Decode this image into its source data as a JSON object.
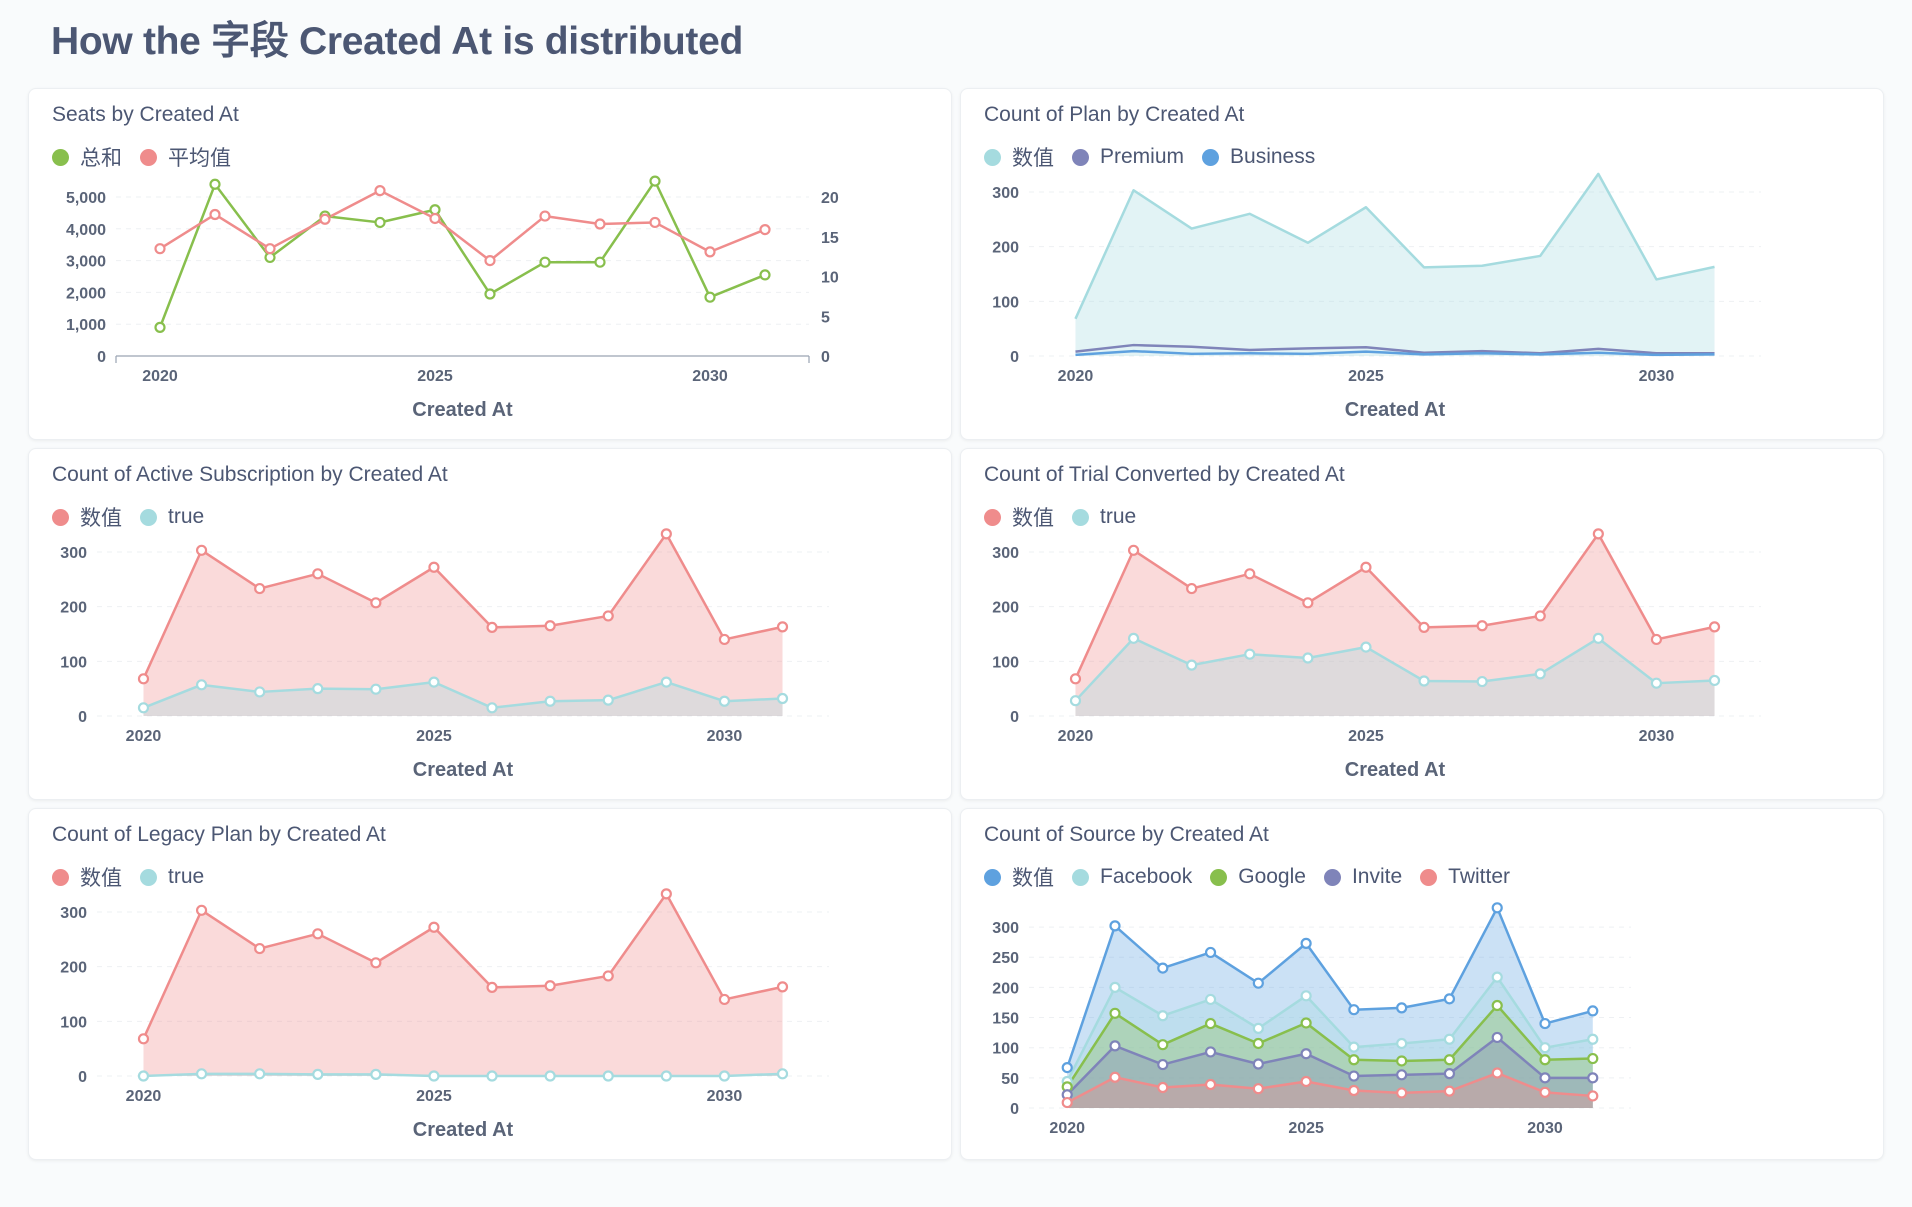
{
  "page": {
    "title": "How the 字段 Created At is distributed"
  },
  "cards": [
    {
      "title": "Seats by Created At",
      "legend": [
        {
          "label": "总和",
          "color": "#88bf4d"
        },
        {
          "label": "平均值",
          "color": "#ef8c8c"
        }
      ],
      "chart_data": {
        "type": "line",
        "title": "Seats by Created At",
        "xlabel": "Created At",
        "ylabel": "",
        "x": [
          2020,
          2021,
          2022,
          2023,
          2024,
          2025,
          2026,
          2027,
          2028,
          2029,
          2030,
          2031
        ],
        "xticks": [
          2020,
          2025,
          2030
        ],
        "ylim": [
          0,
          5000
        ],
        "yticks": [
          0,
          1000,
          2000,
          3000,
          4000,
          5000
        ],
        "y2lim": [
          0,
          20
        ],
        "y2ticks": [
          0,
          5,
          10,
          15,
          20
        ],
        "series": [
          {
            "name": "总和",
            "color": "#88bf4d",
            "axis": "left",
            "values": [
              900,
              5400,
              3100,
              4400,
              4200,
              4600,
              1950,
              2950,
              2950,
              5500,
              1850,
              2550
            ]
          },
          {
            "name": "平均值",
            "color": "#ef8c8c",
            "axis": "right",
            "values": [
              13.5,
              17.8,
              13.5,
              17.2,
              20.8,
              17.3,
              12.0,
              17.6,
              16.6,
              16.8,
              13.1,
              15.9
            ]
          }
        ],
        "legend": "top-left",
        "grid": true
      }
    },
    {
      "title": "Count of Plan by Created At",
      "legend": [
        {
          "label": "数值",
          "color": "#a5dbdf"
        },
        {
          "label": "Premium",
          "color": "#7f84b9"
        },
        {
          "label": "Business",
          "color": "#5ea1df"
        }
      ],
      "chart_data": {
        "type": "area",
        "title": "Count of Plan by Created At",
        "xlabel": "Created At",
        "ylabel": "",
        "x": [
          2020,
          2021,
          2022,
          2023,
          2024,
          2025,
          2026,
          2027,
          2028,
          2029,
          2030,
          2031
        ],
        "xticks": [
          2020,
          2025,
          2030
        ],
        "ylim": [
          0,
          320
        ],
        "yticks": [
          0,
          100,
          200,
          300
        ],
        "stacked": false,
        "markers": false,
        "series": [
          {
            "name": "数值",
            "color": "#a5dbdf",
            "fill": true,
            "values": [
              68,
              303,
              233,
              260,
              207,
              272,
              162,
              165,
              183,
              333,
              140,
              163
            ]
          },
          {
            "name": "Premium",
            "color": "#7f84b9",
            "fill": false,
            "values": [
              8,
              20,
              17,
              11,
              14,
              16,
              6,
              9,
              5,
              13,
              5,
              5
            ]
          },
          {
            "name": "Business",
            "color": "#5ea1df",
            "fill": false,
            "values": [
              2,
              9,
              4,
              5,
              4,
              8,
              3,
              5,
              3,
              6,
              2,
              3
            ]
          }
        ],
        "legend": "top-left",
        "grid": true
      }
    },
    {
      "title": "Count of Active Subscription by Created At",
      "legend": [
        {
          "label": "数值",
          "color": "#ef8c8c"
        },
        {
          "label": "true",
          "color": "#a5dbdf"
        }
      ],
      "chart_data": {
        "type": "area",
        "title": "Count of Active Subscription by Created At",
        "xlabel": "Created At",
        "ylabel": "",
        "x": [
          2020,
          2021,
          2022,
          2023,
          2024,
          2025,
          2026,
          2027,
          2028,
          2029,
          2030,
          2031
        ],
        "xticks": [
          2020,
          2025,
          2030
        ],
        "ylim": [
          0,
          320
        ],
        "yticks": [
          0,
          100,
          200,
          300
        ],
        "stacked": false,
        "markers": true,
        "series": [
          {
            "name": "数值",
            "color": "#ef8c8c",
            "fill": true,
            "values": [
              68,
              303,
              233,
              260,
              207,
              272,
              162,
              165,
              183,
              333,
              140,
              163
            ]
          },
          {
            "name": "true",
            "color": "#a5dbdf",
            "fill": true,
            "values": [
              15,
              57,
              44,
              50,
              49,
              62,
              15,
              27,
              29,
              62,
              27,
              32
            ]
          }
        ],
        "legend": "top-left",
        "grid": true
      }
    },
    {
      "title": "Count of Trial Converted by Created At",
      "legend": [
        {
          "label": "数值",
          "color": "#ef8c8c"
        },
        {
          "label": "true",
          "color": "#a5dbdf"
        }
      ],
      "chart_data": {
        "type": "area",
        "title": "Count of Trial Converted by Created At",
        "xlabel": "Created At",
        "ylabel": "",
        "x": [
          2020,
          2021,
          2022,
          2023,
          2024,
          2025,
          2026,
          2027,
          2028,
          2029,
          2030,
          2031
        ],
        "xticks": [
          2020,
          2025,
          2030
        ],
        "ylim": [
          0,
          320
        ],
        "yticks": [
          0,
          100,
          200,
          300
        ],
        "stacked": false,
        "markers": true,
        "series": [
          {
            "name": "数值",
            "color": "#ef8c8c",
            "fill": true,
            "values": [
              68,
              303,
              233,
              260,
              207,
              272,
              162,
              165,
              183,
              333,
              140,
              163
            ]
          },
          {
            "name": "true",
            "color": "#a5dbdf",
            "fill": true,
            "values": [
              28,
              142,
              93,
              113,
              106,
              126,
              64,
              63,
              77,
              142,
              60,
              65
            ]
          }
        ],
        "legend": "top-left",
        "grid": true
      }
    },
    {
      "title": "Count of Legacy Plan by Created At",
      "legend": [
        {
          "label": "数值",
          "color": "#ef8c8c"
        },
        {
          "label": "true",
          "color": "#a5dbdf"
        }
      ],
      "chart_data": {
        "type": "area",
        "title": "Count of Legacy Plan by Created At",
        "xlabel": "Created At",
        "ylabel": "",
        "x": [
          2020,
          2021,
          2022,
          2023,
          2024,
          2025,
          2026,
          2027,
          2028,
          2029,
          2030,
          2031
        ],
        "xticks": [
          2020,
          2025,
          2030
        ],
        "ylim": [
          0,
          320
        ],
        "yticks": [
          0,
          100,
          200,
          300
        ],
        "stacked": false,
        "markers": true,
        "series": [
          {
            "name": "数值",
            "color": "#ef8c8c",
            "fill": true,
            "values": [
              68,
              303,
              233,
              260,
              207,
              272,
              162,
              165,
              183,
              333,
              140,
              163
            ]
          },
          {
            "name": "true",
            "color": "#a5dbdf",
            "fill": true,
            "values": [
              0,
              4,
              4,
              3,
              3,
              0,
              0,
              0,
              0,
              0,
              0,
              4
            ]
          }
        ],
        "legend": "top-left",
        "grid": true
      }
    },
    {
      "title": "Count of Source by Created At",
      "legend": [
        {
          "label": "数值",
          "color": "#5ea1df"
        },
        {
          "label": "Facebook",
          "color": "#a5dbdf"
        },
        {
          "label": "Google",
          "color": "#88bf4d"
        },
        {
          "label": "Invite",
          "color": "#7f84b9"
        },
        {
          "label": "Twitter",
          "color": "#ef8c8c"
        }
      ],
      "chart_data": {
        "type": "area",
        "title": "Count of Source by Created At",
        "xlabel": "",
        "ylabel": "",
        "x": [
          2020,
          2021,
          2022,
          2023,
          2024,
          2025,
          2026,
          2027,
          2028,
          2029,
          2030,
          2031
        ],
        "xticks": [
          2020,
          2025,
          2030
        ],
        "ylim": [
          0,
          330
        ],
        "yticks": [
          0,
          50,
          100,
          150,
          200,
          250,
          300
        ],
        "stacked": false,
        "markers": true,
        "series": [
          {
            "name": "数值",
            "color": "#5ea1df",
            "fill": true,
            "values": [
              67,
              302,
              232,
              258,
              207,
              273,
              163,
              166,
              181,
              332,
              140,
              161
            ]
          },
          {
            "name": "Facebook",
            "color": "#a5dbdf",
            "fill": true,
            "values": [
              44,
              200,
              153,
              180,
              132,
              186,
              101,
              107,
              114,
              217,
              100,
              114
            ]
          },
          {
            "name": "Google",
            "color": "#88bf4d",
            "fill": true,
            "values": [
              35,
              157,
              105,
              140,
              107,
              141,
              80,
              78,
              80,
              170,
              80,
              82
            ]
          },
          {
            "name": "Invite",
            "color": "#7f84b9",
            "fill": true,
            "values": [
              22,
              103,
              72,
              93,
              73,
              90,
              53,
              55,
              57,
              117,
              50,
              50
            ]
          },
          {
            "name": "Twitter",
            "color": "#ef8c8c",
            "fill": true,
            "values": [
              9,
              51,
              34,
              39,
              32,
              44,
              29,
              25,
              28,
              58,
              26,
              20
            ]
          }
        ],
        "legend": "top-left",
        "grid": true
      }
    }
  ]
}
